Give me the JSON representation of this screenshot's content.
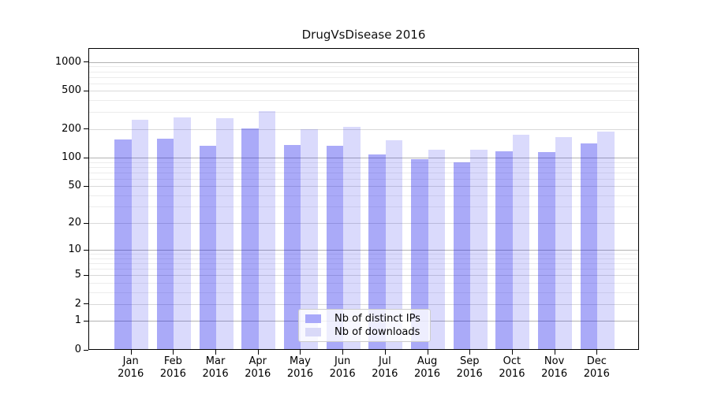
{
  "title": "DrugVsDisease 2016",
  "chart_data": {
    "type": "bar",
    "title": "DrugVsDisease 2016",
    "categories": [
      "Jan",
      "Feb",
      "Mar",
      "Apr",
      "May",
      "Jun",
      "Jul",
      "Aug",
      "Sep",
      "Oct",
      "Nov",
      "Dec"
    ],
    "x_tick_second_line": "2016",
    "series": [
      {
        "name": "Nb of distinct IPs",
        "color": "#a8a8fa",
        "fill": "rgba(20,20,235,0.36)",
        "values": [
          155,
          157,
          132,
          203,
          135,
          133,
          108,
          97,
          90,
          117,
          114,
          141
        ]
      },
      {
        "name": "Nb of downloads",
        "color": "#d9d9f8",
        "fill": "rgba(20,20,235,0.155)",
        "values": [
          248,
          262,
          260,
          310,
          199,
          209,
          152,
          122,
          120,
          175,
          165,
          186
        ]
      }
    ],
    "xlabel": "",
    "ylabel": "",
    "yscale": "symlog",
    "ylim": [
      0,
      1400
    ],
    "y_ticks": [
      0,
      1,
      2,
      5,
      10,
      20,
      50,
      100,
      200,
      500,
      1000
    ],
    "y_major_gridlines": [
      1,
      10,
      100,
      1000
    ],
    "grid": "horizontal, major and minor",
    "legend_location": "lower center",
    "colors": {
      "major_grid": "#b2b2b2",
      "mid_grid": "#d9d9d9",
      "minor_grid": "#ececec",
      "spine": "#000000"
    }
  }
}
